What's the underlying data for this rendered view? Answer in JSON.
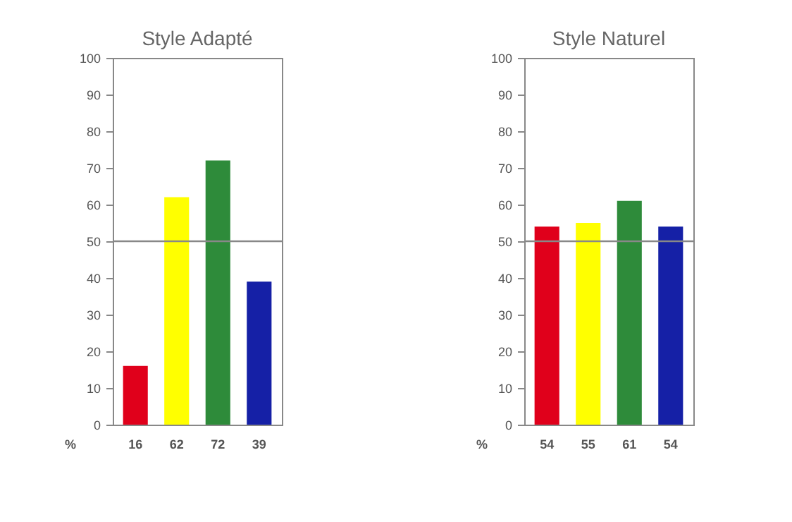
{
  "chart_data": [
    {
      "type": "bar",
      "title": "Style Adapté",
      "categories": [
        null,
        null,
        null,
        null
      ],
      "values": [
        16,
        62,
        72,
        39
      ],
      "colors": [
        "#e0001b",
        "#ffff00",
        "#2e8b3a",
        "#1520a6"
      ],
      "ylim": [
        0,
        100
      ],
      "yticks": [
        0,
        10,
        20,
        30,
        40,
        50,
        60,
        70,
        80,
        90,
        100
      ],
      "ref_lines": [
        {
          "axis": "y",
          "value": 50,
          "color": "#888888"
        }
      ],
      "data_labels": true,
      "annotations": [
        "%"
      ]
    },
    {
      "type": "bar",
      "title": "Style Naturel",
      "categories": [
        null,
        null,
        null,
        null
      ],
      "values": [
        54,
        55,
        61,
        54
      ],
      "colors": [
        "#e0001b",
        "#ffff00",
        "#2e8b3a",
        "#1520a6"
      ],
      "ylim": [
        0,
        100
      ],
      "yticks": [
        0,
        10,
        20,
        30,
        40,
        50,
        60,
        70,
        80,
        90,
        100
      ],
      "ref_lines": [
        {
          "axis": "y",
          "value": 50,
          "color": "#888888"
        }
      ],
      "data_labels": true,
      "annotations": [
        "%"
      ]
    }
  ]
}
